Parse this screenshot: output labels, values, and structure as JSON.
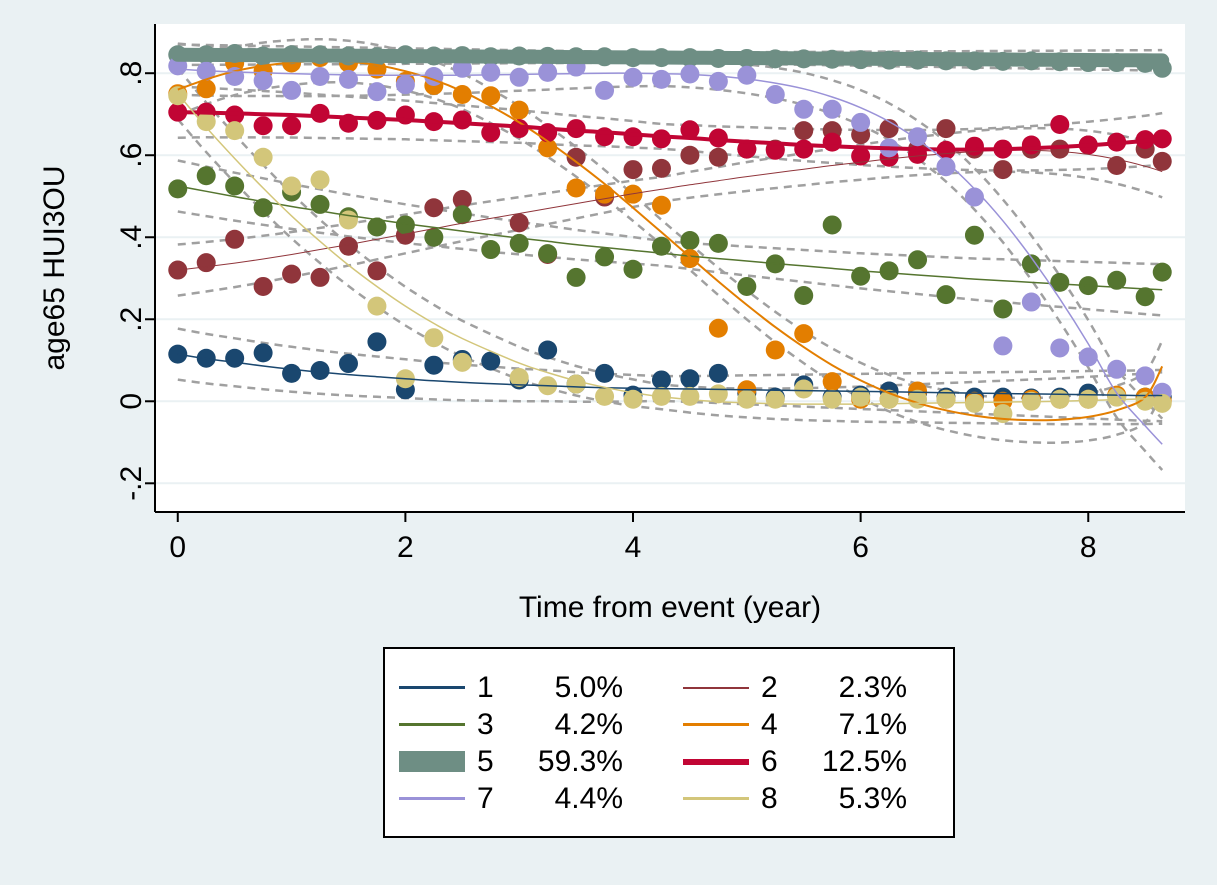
{
  "chart_data": {
    "type": "scatter",
    "xlabel": "Time from event (year)",
    "ylabel": "age65 HUI3OU",
    "xlim": [
      -0.2,
      8.85
    ],
    "ylim": [
      -0.27,
      0.92
    ],
    "x_ticks": [
      0,
      2,
      4,
      6,
      8
    ],
    "x_tick_labels": [
      "0",
      "2",
      "4",
      "6",
      "8"
    ],
    "y_ticks": [
      -0.2,
      0,
      0.2,
      0.4,
      0.6,
      0.8
    ],
    "y_tick_labels": [
      "-.2",
      "0",
      ".2",
      ".4",
      ".6",
      ".8"
    ],
    "grid": true,
    "legend_position": "bottom",
    "series": [
      {
        "name": "1",
        "share": "5.0%",
        "color": "#1a476f",
        "x": [
          0,
          0.25,
          0.5,
          0.75,
          1.0,
          1.25,
          1.5,
          1.75,
          2.0,
          2.25,
          2.5,
          2.75,
          3.0,
          3.25,
          3.5,
          3.75,
          4.0,
          4.25,
          4.5,
          4.75,
          5.0,
          5.25,
          5.5,
          5.75,
          6.0,
          6.25,
          6.5,
          6.75,
          7.0,
          7.25,
          7.5,
          7.75,
          8.0,
          8.25,
          8.5,
          8.65
        ],
        "y": [
          0.115,
          0.105,
          0.105,
          0.118,
          0.068,
          0.075,
          0.092,
          0.145,
          0.028,
          0.088,
          0.102,
          0.098,
          0.052,
          0.125,
          0.042,
          0.068,
          0.015,
          0.052,
          0.055,
          0.068,
          0.02,
          0.01,
          0.04,
          0.01,
          0.015,
          0.025,
          0.02,
          0.01,
          0.01,
          0.01,
          0.008,
          0.01,
          0.02,
          0.012,
          0.01,
          0.01
        ],
        "fit": [
          0.115,
          0.104,
          0.095,
          0.086,
          0.078,
          0.071,
          0.065,
          0.06,
          0.055,
          0.05,
          0.046,
          0.043,
          0.04,
          0.038,
          0.035,
          0.033,
          0.032,
          0.031,
          0.03,
          0.029,
          0.028,
          0.027,
          0.026,
          0.025,
          0.024,
          0.023,
          0.022,
          0.021,
          0.02,
          0.019,
          0.018,
          0.017,
          0.016,
          0.015,
          0.014,
          0.014
        ],
        "fit_width": 1.5
      },
      {
        "name": "2",
        "share": "2.3%",
        "color": "#90353b",
        "x": [
          0,
          0.25,
          0.5,
          0.75,
          1.0,
          1.25,
          1.5,
          1.75,
          2.0,
          2.25,
          2.5,
          3.0,
          3.25,
          3.5,
          3.75,
          4.0,
          4.25,
          4.5,
          4.75,
          5.0,
          5.25,
          5.5,
          5.75,
          6.0,
          6.25,
          6.5,
          6.75,
          7.0,
          7.25,
          7.5,
          7.75,
          8.0,
          8.25,
          8.5,
          8.65
        ],
        "y": [
          0.32,
          0.338,
          0.395,
          0.28,
          0.31,
          0.302,
          0.378,
          0.318,
          0.405,
          0.472,
          0.492,
          0.435,
          0.358,
          0.595,
          0.498,
          0.565,
          0.568,
          0.6,
          0.595,
          0.615,
          0.615,
          0.66,
          0.66,
          0.65,
          0.665,
          0.615,
          0.665,
          0.615,
          0.565,
          0.615,
          0.615,
          0.625,
          0.575,
          0.615,
          0.585
        ],
        "fit": [
          0.32,
          0.328,
          0.337,
          0.347,
          0.358,
          0.37,
          0.382,
          0.395,
          0.408,
          0.421,
          0.434,
          0.458,
          0.47,
          0.482,
          0.494,
          0.506,
          0.517,
          0.528,
          0.538,
          0.548,
          0.557,
          0.566,
          0.575,
          0.583,
          0.591,
          0.598,
          0.604,
          0.609,
          0.612,
          0.612,
          0.609,
          0.602,
          0.59,
          0.573,
          0.56
        ],
        "fit_width": 1
      },
      {
        "name": "3",
        "share": "4.2%",
        "color": "#55752f",
        "x": [
          0,
          0.25,
          0.5,
          0.75,
          1.0,
          1.25,
          1.5,
          1.75,
          2.0,
          2.25,
          2.5,
          2.75,
          3.0,
          3.25,
          3.5,
          3.75,
          4.0,
          4.25,
          4.5,
          4.75,
          5.0,
          5.25,
          5.5,
          5.75,
          6.0,
          6.25,
          6.5,
          6.75,
          7.0,
          7.25,
          7.5,
          7.75,
          8.0,
          8.25,
          8.5,
          8.65
        ],
        "y": [
          0.518,
          0.55,
          0.525,
          0.472,
          0.51,
          0.48,
          0.45,
          0.425,
          0.43,
          0.4,
          0.455,
          0.37,
          0.385,
          0.36,
          0.302,
          0.352,
          0.322,
          0.378,
          0.392,
          0.385,
          0.28,
          0.335,
          0.258,
          0.43,
          0.305,
          0.318,
          0.345,
          0.26,
          0.405,
          0.225,
          0.335,
          0.29,
          0.282,
          0.295,
          0.255,
          0.315
        ],
        "fit": [
          0.525,
          0.512,
          0.499,
          0.487,
          0.475,
          0.464,
          0.453,
          0.443,
          0.433,
          0.424,
          0.415,
          0.406,
          0.398,
          0.39,
          0.382,
          0.375,
          0.368,
          0.361,
          0.354,
          0.348,
          0.342,
          0.336,
          0.33,
          0.324,
          0.318,
          0.313,
          0.308,
          0.303,
          0.298,
          0.294,
          0.29,
          0.286,
          0.282,
          0.278,
          0.274,
          0.272
        ],
        "fit_width": 1.5
      },
      {
        "name": "4",
        "share": "7.1%",
        "color": "#e37e00",
        "x": [
          0,
          0.25,
          0.5,
          0.75,
          1.0,
          1.25,
          1.5,
          1.75,
          2.0,
          2.25,
          2.5,
          2.75,
          3.0,
          3.25,
          3.5,
          3.75,
          4.0,
          4.25,
          4.5,
          4.75,
          5.0,
          5.25,
          5.5,
          5.75,
          6.0,
          6.25,
          6.5,
          6.75,
          7.0,
          7.25,
          7.5,
          7.75,
          8.0,
          8.25,
          8.5,
          8.65
        ],
        "y": [
          0.75,
          0.762,
          0.825,
          0.805,
          0.825,
          0.838,
          0.825,
          0.81,
          0.78,
          0.77,
          0.748,
          0.745,
          0.71,
          0.618,
          0.52,
          0.505,
          0.505,
          0.478,
          0.348,
          0.178,
          0.028,
          0.125,
          0.165,
          0.048,
          0.005,
          0.005,
          0.025,
          0.005,
          0.0,
          0.0,
          0.005,
          0.005,
          0.005,
          0.015,
          0.01,
          0.0
        ],
        "fit": [
          0.76,
          0.785,
          0.805,
          0.818,
          0.826,
          0.83,
          0.828,
          0.82,
          0.805,
          0.784,
          0.756,
          0.72,
          0.68,
          0.634,
          0.584,
          0.53,
          0.472,
          0.412,
          0.352,
          0.292,
          0.235,
          0.181,
          0.132,
          0.088,
          0.051,
          0.02,
          -0.004,
          -0.022,
          -0.035,
          -0.043,
          -0.046,
          -0.045,
          -0.038,
          -0.022,
          0.01,
          0.085
        ],
        "fit_width": 2
      },
      {
        "name": "5",
        "share": "59.3%",
        "color": "#6e8e84",
        "x": [
          0,
          0.25,
          0.5,
          0.75,
          1.0,
          1.25,
          1.5,
          1.75,
          2.0,
          2.25,
          2.5,
          2.75,
          3.0,
          3.25,
          3.5,
          3.75,
          4.0,
          4.25,
          4.5,
          4.75,
          5.0,
          5.25,
          5.5,
          5.75,
          6.0,
          6.25,
          6.5,
          6.75,
          7.0,
          7.25,
          7.5,
          7.75,
          8.0,
          8.25,
          8.5,
          8.65
        ],
        "y": [
          0.845,
          0.845,
          0.848,
          0.842,
          0.845,
          0.845,
          0.842,
          0.84,
          0.845,
          0.842,
          0.843,
          0.84,
          0.842,
          0.841,
          0.84,
          0.84,
          0.838,
          0.838,
          0.838,
          0.836,
          0.836,
          0.835,
          0.835,
          0.834,
          0.833,
          0.832,
          0.832,
          0.83,
          0.83,
          0.829,
          0.83,
          0.828,
          0.826,
          0.826,
          0.824,
          0.812
        ],
        "fit": [
          0.845,
          0.8446,
          0.8442,
          0.8438,
          0.8434,
          0.843,
          0.8426,
          0.8422,
          0.8418,
          0.8414,
          0.841,
          0.8406,
          0.8402,
          0.8398,
          0.8394,
          0.839,
          0.8386,
          0.8382,
          0.8378,
          0.8374,
          0.837,
          0.8366,
          0.8362,
          0.8358,
          0.8354,
          0.835,
          0.8346,
          0.8342,
          0.8338,
          0.8334,
          0.833,
          0.8326,
          0.8322,
          0.8318,
          0.8314,
          0.8312
        ],
        "fit_width": 14
      },
      {
        "name": "6",
        "share": "12.5%",
        "color": "#c10534",
        "x": [
          0,
          0.25,
          0.5,
          0.75,
          1.0,
          1.25,
          1.5,
          1.75,
          2.0,
          2.25,
          2.5,
          2.75,
          3.0,
          3.25,
          3.5,
          3.75,
          4.0,
          4.25,
          4.5,
          4.75,
          5.0,
          5.25,
          5.5,
          5.75,
          6.0,
          6.25,
          6.5,
          6.75,
          7.0,
          7.25,
          7.5,
          7.75,
          8.0,
          8.25,
          8.5,
          8.65
        ],
        "y": [
          0.705,
          0.705,
          0.698,
          0.672,
          0.672,
          0.702,
          0.678,
          0.685,
          0.698,
          0.682,
          0.686,
          0.655,
          0.665,
          0.655,
          0.665,
          0.645,
          0.645,
          0.64,
          0.662,
          0.642,
          0.615,
          0.612,
          0.615,
          0.632,
          0.598,
          0.595,
          0.602,
          0.612,
          0.622,
          0.615,
          0.625,
          0.675,
          0.625,
          0.632,
          0.638,
          0.64
        ],
        "fit": [
          0.705,
          0.704,
          0.702,
          0.7,
          0.698,
          0.695,
          0.692,
          0.689,
          0.686,
          0.682,
          0.678,
          0.674,
          0.67,
          0.665,
          0.66,
          0.656,
          0.651,
          0.646,
          0.642,
          0.637,
          0.633,
          0.629,
          0.625,
          0.622,
          0.619,
          0.617,
          0.615,
          0.614,
          0.614,
          0.615,
          0.617,
          0.62,
          0.624,
          0.629,
          0.635,
          0.64
        ],
        "fit_width": 4
      },
      {
        "name": "7",
        "share": "4.4%",
        "color": "#9a92d8",
        "x": [
          0,
          0.25,
          0.5,
          0.75,
          1.0,
          1.25,
          1.5,
          1.75,
          2.0,
          2.25,
          2.5,
          2.75,
          3.0,
          3.25,
          3.5,
          3.75,
          4.0,
          4.25,
          4.5,
          4.75,
          5.0,
          5.25,
          5.5,
          5.75,
          6.0,
          6.25,
          6.5,
          6.75,
          7.0,
          7.25,
          7.5,
          7.75,
          8.0,
          8.25,
          8.5,
          8.65
        ],
        "y": [
          0.818,
          0.805,
          0.792,
          0.782,
          0.758,
          0.792,
          0.785,
          0.755,
          0.772,
          0.792,
          0.812,
          0.802,
          0.79,
          0.802,
          0.815,
          0.758,
          0.79,
          0.785,
          0.798,
          0.78,
          0.795,
          0.748,
          0.712,
          0.712,
          0.68,
          0.618,
          0.645,
          0.572,
          0.498,
          0.135,
          0.242,
          0.13,
          0.108,
          0.078,
          0.062,
          0.022
        ],
        "fit": [
          0.81,
          0.806,
          0.803,
          0.801,
          0.799,
          0.797,
          0.796,
          0.795,
          0.795,
          0.795,
          0.795,
          0.796,
          0.797,
          0.798,
          0.799,
          0.8,
          0.8,
          0.799,
          0.797,
          0.793,
          0.786,
          0.776,
          0.762,
          0.742,
          0.716,
          0.682,
          0.638,
          0.584,
          0.518,
          0.44,
          0.35,
          0.25,
          0.14,
          0.02,
          -0.06,
          -0.105
        ],
        "fit_width": 1.5
      },
      {
        "name": "8",
        "share": "5.3%",
        "color": "#d3c67a",
        "x": [
          0,
          0.25,
          0.5,
          0.75,
          1.0,
          1.25,
          1.5,
          1.75,
          2.0,
          2.25,
          2.5,
          3.0,
          3.25,
          3.5,
          3.75,
          4.0,
          4.25,
          4.5,
          4.75,
          5.0,
          5.25,
          5.5,
          5.75,
          6.0,
          6.25,
          6.5,
          6.75,
          7.0,
          7.25,
          7.5,
          7.75,
          8.0,
          8.25,
          8.5,
          8.65
        ],
        "y": [
          0.745,
          0.682,
          0.66,
          0.595,
          0.525,
          0.54,
          0.442,
          0.232,
          0.055,
          0.155,
          0.095,
          0.058,
          0.038,
          0.042,
          0.012,
          0.005,
          0.012,
          0.012,
          0.018,
          0.005,
          0.005,
          0.03,
          0.005,
          0.01,
          0.005,
          0.005,
          0.005,
          -0.005,
          -0.03,
          0.0,
          0.005,
          0.005,
          0.01,
          0.0,
          -0.005
        ],
        "fit": [
          0.75,
          0.668,
          0.592,
          0.52,
          0.452,
          0.39,
          0.332,
          0.28,
          0.232,
          0.19,
          0.153,
          0.093,
          0.07,
          0.05,
          0.034,
          0.021,
          0.011,
          0.004,
          -0.001,
          -0.004,
          -0.006,
          -0.007,
          -0.007,
          -0.007,
          -0.006,
          -0.005,
          -0.004,
          -0.003,
          -0.002,
          -0.001,
          0.0,
          0.002,
          0.004,
          0.006,
          0.008
        ],
        "fit_width": 1.5
      }
    ]
  }
}
